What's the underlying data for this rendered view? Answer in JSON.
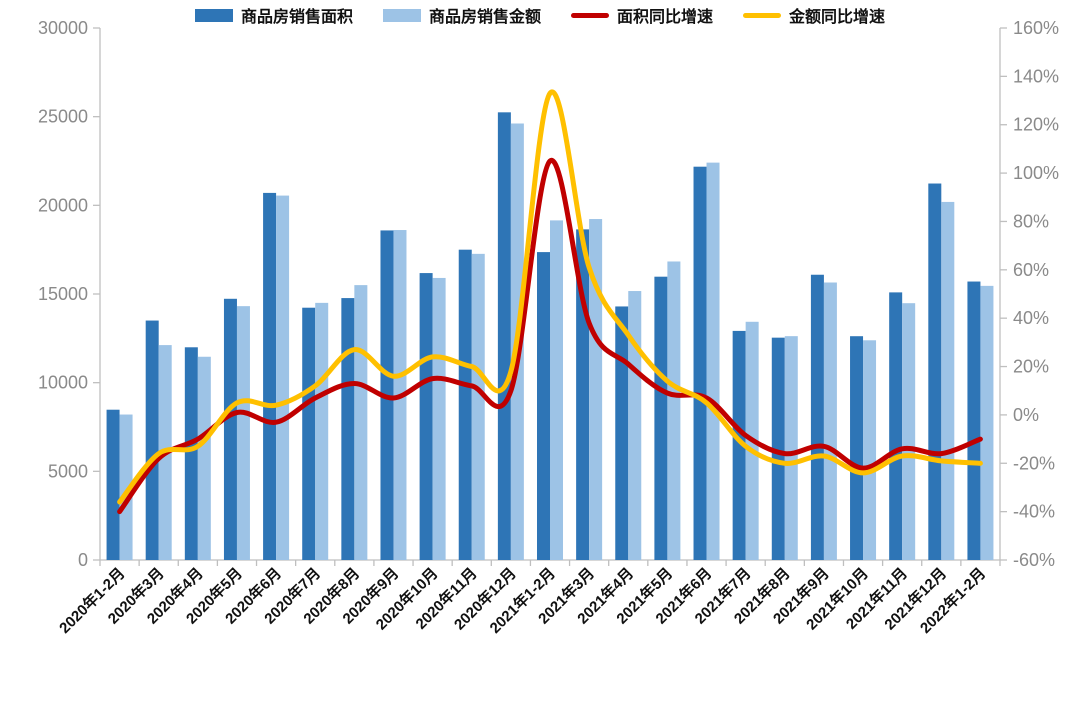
{
  "chart_data": {
    "type": "bar",
    "subtype": "dual-axis bar+line combo",
    "title": "",
    "categories": [
      "2020年1-2月",
      "2020年3月",
      "2020年4月",
      "2020年5月",
      "2020年6月",
      "2020年7月",
      "2020年8月",
      "2020年9月",
      "2020年10月",
      "2020年11月",
      "2020年12月",
      "2021年1-2月",
      "2021年3月",
      "2021年4月",
      "2021年5月",
      "2021年6月",
      "2021年7月",
      "2021年8月",
      "2021年9月",
      "2021年10月",
      "2021年11月",
      "2021年12月",
      "2022年1-2月"
    ],
    "series": [
      {
        "id": "sales-area-bar",
        "name": "商品房销售面积",
        "type": "bar",
        "axis": "left",
        "color": "#2E75B6",
        "values": [
          8475,
          13503,
          11995,
          14730,
          20701,
          14227,
          14770,
          18585,
          16180,
          17499,
          25245,
          17363,
          18644,
          14298,
          15976,
          22179,
          12919,
          12538,
          16086,
          12620,
          15091,
          21230,
          15703
        ]
      },
      {
        "id": "sales-amount-bar",
        "name": "商品房销售金额",
        "type": "bar",
        "axis": "left",
        "color": "#9DC3E6",
        "values": [
          8203,
          12119,
          11461,
          14315,
          20550,
          14500,
          15501,
          18607,
          15905,
          17264,
          24615,
          19151,
          19227,
          15167,
          16834,
          22408,
          13433,
          12623,
          15648,
          12390,
          14482,
          20192,
          15459
        ]
      },
      {
        "id": "area-yoy-line",
        "name": "面积同比增速",
        "type": "line",
        "axis": "right",
        "color": "#C00000",
        "values": [
          -40,
          -18,
          -10,
          1,
          -3,
          7,
          13,
          7,
          15,
          12,
          10,
          105,
          38,
          21,
          9,
          7,
          -8.5,
          -16,
          -13,
          -22,
          -14,
          -16,
          -10
        ]
      },
      {
        "id": "amount-yoy-line",
        "name": "金额同比增速",
        "type": "line",
        "axis": "right",
        "color": "#FFC000",
        "values": [
          -36,
          -16,
          -13,
          5,
          4,
          12,
          27,
          16,
          24,
          20,
          18,
          133,
          61,
          33,
          14,
          5,
          -13,
          -20,
          -17,
          -24,
          -17,
          -19,
          -20
        ]
      }
    ],
    "left_axis": {
      "min": 0,
      "max": 30000,
      "step": 5000,
      "tick_labels": [
        "0",
        "5000",
        "10000",
        "15000",
        "20000",
        "25000",
        "30000"
      ]
    },
    "right_axis": {
      "min": -60,
      "max": 160,
      "step": 20,
      "unit": "%",
      "tick_labels": [
        "-60%",
        "-40%",
        "-20%",
        "0%",
        "20%",
        "40%",
        "60%",
        "80%",
        "100%",
        "120%",
        "140%",
        "160%"
      ]
    },
    "grid": false,
    "legend_position": "bottom"
  },
  "colors": {
    "axis": "#bfbfbf",
    "y_tick_text": "#8a8a8a",
    "x_tick_text": "#111111",
    "background": "#ffffff"
  }
}
